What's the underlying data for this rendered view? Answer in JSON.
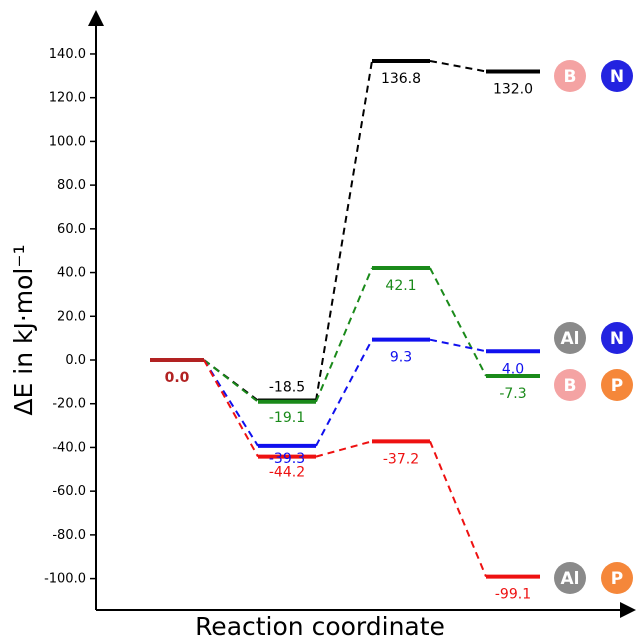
{
  "chart_data": {
    "type": "line",
    "ylabel": "ΔE in kJ·mol⁻¹",
    "xlabel": "Reaction coordinate",
    "ylim": [
      -115,
      150
    ],
    "y_ticks": [
      "140.0",
      "120.0",
      "100.0",
      "80.0",
      "60.0",
      "40.0",
      "20.0",
      "0.0",
      "-20.0",
      "-40.0",
      "-60.0",
      "-80.0",
      "-100.0"
    ],
    "y_tick_values": [
      140,
      120,
      100,
      80,
      60,
      40,
      20,
      0,
      -20,
      -40,
      -60,
      -80,
      -100
    ],
    "grid": false,
    "stages": 5,
    "shared_start": {
      "value": 0.0,
      "label": "0.0",
      "color": "#b22222"
    },
    "series": [
      {
        "pair": [
          "B",
          "N"
        ],
        "color": "#000000",
        "values": [
          0.0,
          -18.5,
          136.8,
          132.0
        ],
        "labels": [
          "0.0",
          "-18.5",
          "136.8",
          "132.0"
        ]
      },
      {
        "pair": [
          "B",
          "P"
        ],
        "color": "#1a8a1a",
        "values": [
          0.0,
          -19.1,
          42.1,
          -7.3
        ],
        "labels": [
          "0.0",
          "-19.1",
          "42.1",
          "-7.3"
        ]
      },
      {
        "pair": [
          "Al",
          "N"
        ],
        "color": "#1010ee",
        "values": [
          0.0,
          -39.3,
          9.3,
          4.0
        ],
        "labels": [
          "0.0",
          "-39.3",
          "9.3",
          "4.0"
        ]
      },
      {
        "pair": [
          "Al",
          "P"
        ],
        "color": "#ee1111",
        "values": [
          0.0,
          -44.2,
          -37.2,
          -99.1
        ],
        "labels": [
          "0.0",
          "-44.2",
          "-37.2",
          "-99.1"
        ]
      }
    ],
    "atom_colors": {
      "B": "#f4a3a3",
      "N": "#2323e0",
      "Al": "#8a8a8a",
      "P": "#f5873a"
    }
  }
}
